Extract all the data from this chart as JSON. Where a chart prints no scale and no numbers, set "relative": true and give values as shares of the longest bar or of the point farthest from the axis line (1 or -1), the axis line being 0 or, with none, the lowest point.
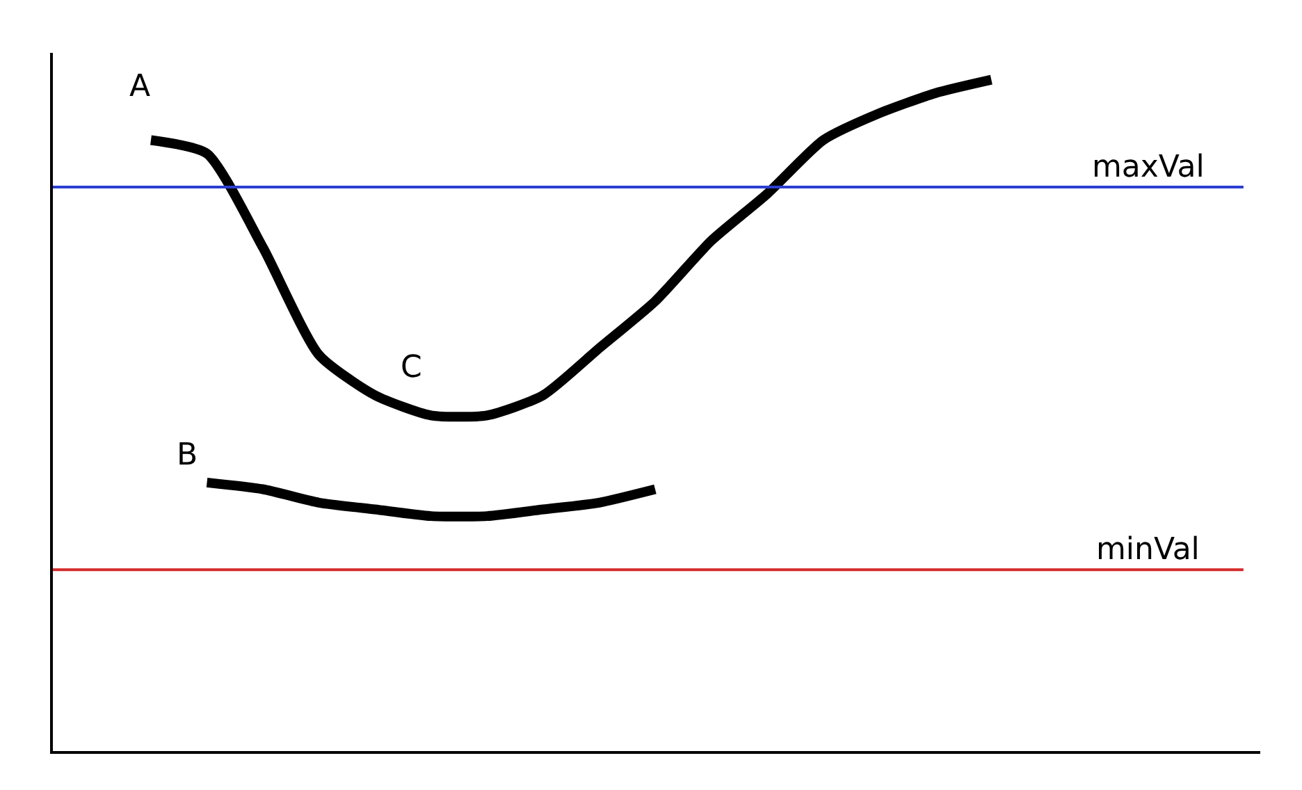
{
  "chart_data": {
    "type": "line",
    "relative": true,
    "marker": "none",
    "line_style": "solid",
    "categories": [
      null,
      null,
      null,
      null,
      null,
      null,
      null,
      null,
      null,
      null,
      null,
      null,
      null,
      null,
      null,
      null,
      null,
      null,
      null,
      null
    ],
    "series": [
      {
        "color": "#000000",
        "values": [
          0.91,
          0.89,
          0.75,
          0.59,
          0.53,
          0.5,
          0.5,
          0.53,
          0.6,
          0.67,
          0.76,
          0.83,
          0.91,
          0.95,
          0.98,
          1,
          null,
          null,
          null,
          null
        ]
      },
      {
        "color": "#000000",
        "values": [
          null,
          0.4,
          0.39,
          0.37,
          0.36,
          0.35,
          0.35,
          0.36,
          0.37,
          0.39,
          null,
          null,
          null,
          null,
          null,
          null,
          null,
          null,
          null,
          null
        ]
      }
    ],
    "ref_lines": [
      {
        "axis": "y",
        "value": 0.84,
        "label": "maxVal",
        "color": "#2a3fd0"
      },
      {
        "axis": "y",
        "value": 0.27,
        "label": "minVal",
        "color": "#d42a2a"
      }
    ],
    "annotations": [
      "A",
      "B",
      "C"
    ]
  }
}
